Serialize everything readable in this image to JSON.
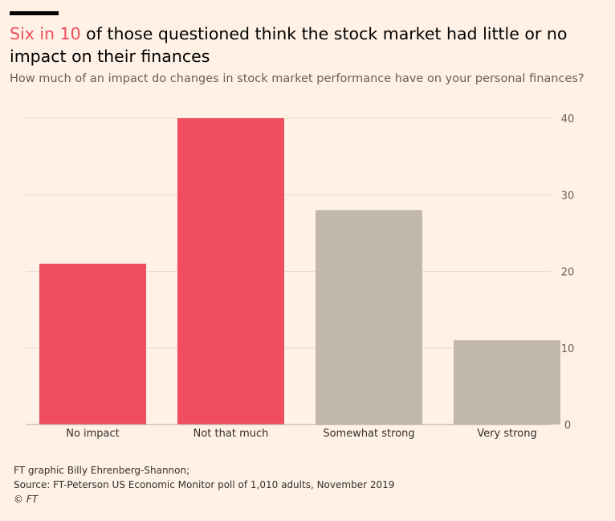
{
  "header": {
    "title_highlight": "Six in 10",
    "title_rest": " of those questioned think the stock market had little or no impact on their finances",
    "subtitle": "How much of an impact do changes in stock market performance have on your personal finances?"
  },
  "footer": {
    "credit": "FT graphic Billy Ehrenberg-Shannon;",
    "source": "Source: FT-Peterson US Economic Monitor poll of 1,010 adults, November 2019",
    "copyright": "© FT"
  },
  "colors": {
    "highlight": "#f04e5e",
    "muted": "#c1b7ad",
    "background": "#fff1e5"
  },
  "chart_data": {
    "type": "bar",
    "categories": [
      "No impact",
      "Not that much",
      "Somewhat strong",
      "Very strong"
    ],
    "values": [
      21,
      40,
      28,
      11
    ],
    "highlighted": [
      true,
      true,
      false,
      false
    ],
    "ylim": [
      0,
      40
    ],
    "yticks": [
      0,
      10,
      20,
      30,
      40
    ],
    "y_axis_position": "right",
    "grid": true
  }
}
